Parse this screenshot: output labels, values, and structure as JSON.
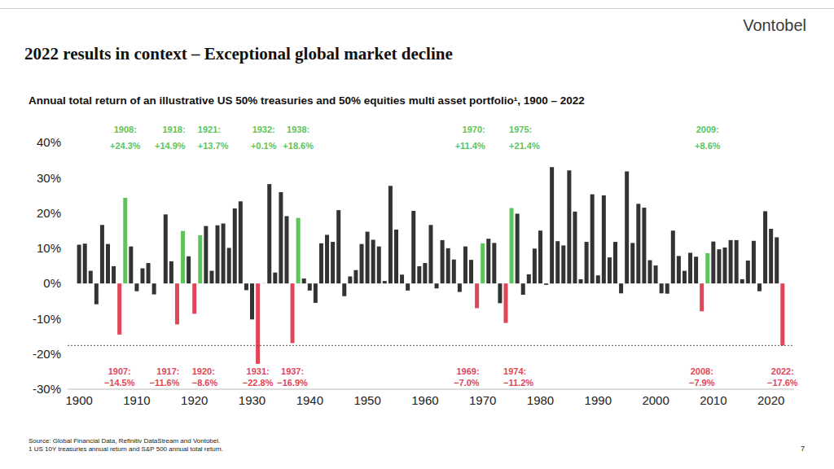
{
  "logo": "Vontobel",
  "source": "Source: Global Financial Data, Refinitiv DataStream and Vontobel.",
  "footnote": "1 US 10Y treasuries annual return and S&P 500 annual total return.",
  "page": "7",
  "chart_data": {
    "type": "bar",
    "title": "2022 results in context – Exceptional global market decline",
    "subtitle": "Annual total return of an illustrative US 50% treasuries and 50% equities multi asset portfolio¹, 1900 – 2022",
    "x": [
      1900,
      1901,
      1902,
      1903,
      1904,
      1905,
      1906,
      1907,
      1908,
      1909,
      1910,
      1911,
      1912,
      1913,
      1914,
      1915,
      1916,
      1917,
      1918,
      1919,
      1920,
      1921,
      1922,
      1923,
      1924,
      1925,
      1926,
      1927,
      1928,
      1929,
      1930,
      1931,
      1932,
      1933,
      1934,
      1935,
      1936,
      1937,
      1938,
      1939,
      1940,
      1941,
      1942,
      1943,
      1944,
      1945,
      1946,
      1947,
      1948,
      1949,
      1950,
      1951,
      1952,
      1953,
      1954,
      1955,
      1956,
      1957,
      1958,
      1959,
      1960,
      1961,
      1962,
      1963,
      1964,
      1965,
      1966,
      1967,
      1968,
      1969,
      1970,
      1971,
      1972,
      1973,
      1974,
      1975,
      1976,
      1977,
      1978,
      1979,
      1980,
      1981,
      1982,
      1983,
      1984,
      1985,
      1986,
      1987,
      1988,
      1989,
      1990,
      1991,
      1992,
      1993,
      1994,
      1995,
      1996,
      1997,
      1998,
      1999,
      2000,
      2001,
      2002,
      2003,
      2004,
      2005,
      2006,
      2007,
      2008,
      2009,
      2010,
      2011,
      2012,
      2013,
      2014,
      2015,
      2016,
      2017,
      2018,
      2019,
      2020,
      2021,
      2022
    ],
    "values": [
      11.0,
      11.3,
      3.6,
      -5.9,
      16.6,
      11.2,
      4.9,
      -14.5,
      24.3,
      10.5,
      -2.2,
      4.3,
      5.8,
      -3.1,
      null,
      19.6,
      6.3,
      -11.6,
      14.9,
      7.7,
      -8.6,
      13.7,
      16.3,
      3.6,
      16.5,
      17.0,
      10.1,
      21.3,
      23.3,
      -1.9,
      -10.2,
      -22.8,
      0.1,
      28.2,
      3.1,
      25.9,
      19.1,
      -16.9,
      18.6,
      1.4,
      -2.0,
      -5.5,
      11.4,
      13.8,
      11.8,
      20.8,
      -3.6,
      2.0,
      3.8,
      11.2,
      14.7,
      12.4,
      10.5,
      0.7,
      27.7,
      15.3,
      2.5,
      -2.0,
      20.6,
      4.9,
      5.8,
      16.6,
      -1.4,
      12.3,
      10.0,
      6.8,
      -2.4,
      10.5,
      6.7,
      -7.0,
      11.4,
      12.7,
      11.5,
      -5.6,
      -11.2,
      21.4,
      19.8,
      -3.2,
      2.6,
      9.9,
      15.0,
      -0.4,
      33.0,
      12.0,
      10.8,
      32.1,
      20.4,
      1.2,
      11.8,
      25.3,
      2.3,
      25.0,
      7.4,
      11.8,
      -2.8,
      31.8,
      11.5,
      22.6,
      21.5,
      6.6,
      5.1,
      -2.8,
      -2.9,
      15.0,
      7.8,
      3.6,
      8.7,
      7.6,
      -7.9,
      8.6,
      11.9,
      9.7,
      10.2,
      12.3,
      12.3,
      1.2,
      6.5,
      12.1,
      -2.2,
      20.5,
      15.5,
      13.1,
      -17.6
    ],
    "colors": [
      "#333333",
      "#333333",
      "#333333",
      "#333333",
      "#333333",
      "#333333",
      "#333333",
      "#e04658",
      "#5cc45c",
      "#333333",
      "#333333",
      "#333333",
      "#333333",
      "#333333",
      "#333333",
      "#333333",
      "#333333",
      "#e04658",
      "#5cc45c",
      "#333333",
      "#e04658",
      "#5cc45c",
      "#333333",
      "#333333",
      "#333333",
      "#333333",
      "#333333",
      "#333333",
      "#333333",
      "#333333",
      "#333333",
      "#e04658",
      "#5cc45c",
      "#333333",
      "#333333",
      "#333333",
      "#333333",
      "#e04658",
      "#5cc45c",
      "#333333",
      "#333333",
      "#333333",
      "#333333",
      "#333333",
      "#333333",
      "#333333",
      "#333333",
      "#333333",
      "#333333",
      "#333333",
      "#333333",
      "#333333",
      "#333333",
      "#333333",
      "#333333",
      "#333333",
      "#333333",
      "#333333",
      "#333333",
      "#333333",
      "#333333",
      "#333333",
      "#333333",
      "#333333",
      "#333333",
      "#333333",
      "#333333",
      "#333333",
      "#333333",
      "#e04658",
      "#5cc45c",
      "#333333",
      "#333333",
      "#333333",
      "#e04658",
      "#5cc45c",
      "#333333",
      "#333333",
      "#333333",
      "#333333",
      "#333333",
      "#333333",
      "#333333",
      "#333333",
      "#333333",
      "#333333",
      "#333333",
      "#333333",
      "#333333",
      "#333333",
      "#333333",
      "#333333",
      "#333333",
      "#333333",
      "#333333",
      "#333333",
      "#333333",
      "#333333",
      "#333333",
      "#333333",
      "#333333",
      "#333333",
      "#333333",
      "#333333",
      "#333333",
      "#333333",
      "#333333",
      "#333333",
      "#e04658",
      "#5cc45c",
      "#333333",
      "#333333",
      "#333333",
      "#333333",
      "#333333",
      "#333333",
      "#333333",
      "#333333",
      "#333333",
      "#333333",
      "#333333",
      "#333333",
      "#e04658"
    ],
    "xlim": [
      1898,
      2024
    ],
    "xticks": [
      1900,
      1910,
      1920,
      1930,
      1940,
      1950,
      1960,
      1970,
      1980,
      1990,
      2000,
      2010,
      2020
    ],
    "ylim": [
      -30,
      40
    ],
    "yticks": [
      {
        "value": -30,
        "label": "-30%"
      },
      {
        "value": -20,
        "label": "-20%"
      },
      {
        "value": -10,
        "label": "-10%"
      },
      {
        "value": 0,
        "label": "0%"
      },
      {
        "value": 10,
        "label": "10%"
      },
      {
        "value": 20,
        "label": "20%"
      },
      {
        "value": 30,
        "label": "30%"
      },
      {
        "value": 40,
        "label": "40%"
      }
    ],
    "grid": false,
    "reference_line": -17.6,
    "annotations": [
      {
        "x": 1907,
        "label": "1907:",
        "value_label": "−14.5%"
      },
      {
        "x": 1908,
        "label": "1908:",
        "value_label": "+24.3%"
      },
      {
        "x": 1917,
        "label": "1917:",
        "value_label": "−11.6%"
      },
      {
        "x": 1918,
        "label": "1918:",
        "value_label": "+14.9%"
      },
      {
        "x": 1920,
        "label": "1920:",
        "value_label": "−8.6%"
      },
      {
        "x": 1921,
        "label": "1921:",
        "value_label": "+13.7%"
      },
      {
        "x": 1931,
        "label": "1931:",
        "value_label": "−22.8%"
      },
      {
        "x": 1932,
        "label": "1932:",
        "value_label": "+0.1%"
      },
      {
        "x": 1937,
        "label": "1937:",
        "value_label": "−16.9%"
      },
      {
        "x": 1938,
        "label": "1938:",
        "value_label": "+18.6%"
      },
      {
        "x": 1969,
        "label": "1969:",
        "value_label": "−7.0%"
      },
      {
        "x": 1970,
        "label": "1970:",
        "value_label": "+11.4%"
      },
      {
        "x": 1974,
        "label": "1974:",
        "value_label": "−11.2%"
      },
      {
        "x": 1975,
        "label": "1975:",
        "value_label": "+21.4%"
      },
      {
        "x": 2008,
        "label": "2008:",
        "value_label": "−7.9%"
      },
      {
        "x": 2009,
        "label": "2009:",
        "value_label": "+8.6%"
      },
      {
        "x": 2022,
        "label": "2022:",
        "value_label": "−17.6%"
      }
    ]
  }
}
